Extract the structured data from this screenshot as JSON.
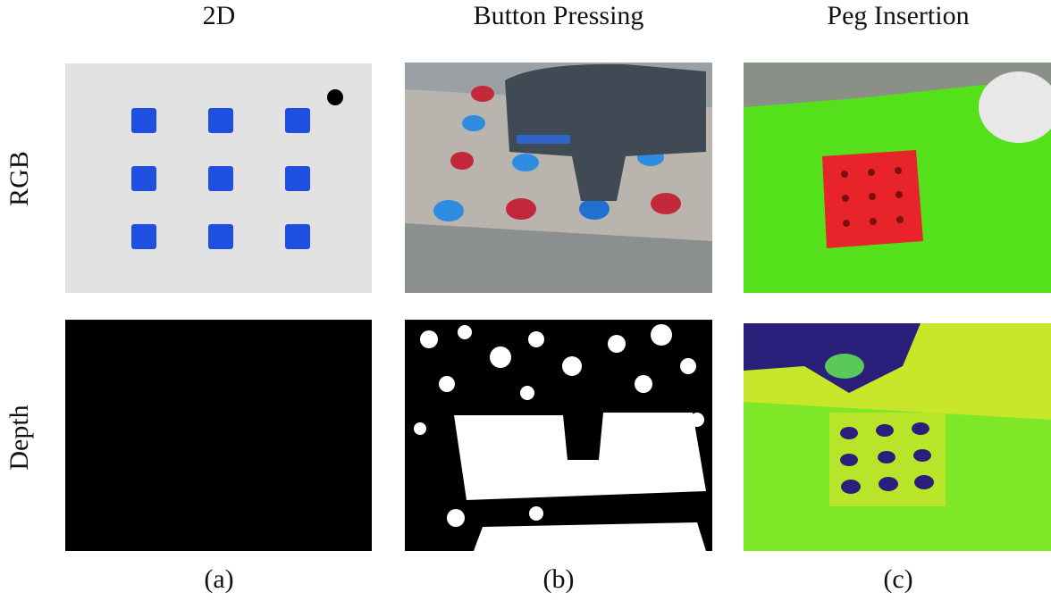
{
  "columns": [
    {
      "title": "2D",
      "caption": "(a)"
    },
    {
      "title": "Button Pressing",
      "caption": "(b)"
    },
    {
      "title": "Peg Insertion",
      "caption": "(c)"
    }
  ],
  "rows": [
    {
      "label": "RGB"
    },
    {
      "label": "Depth"
    }
  ]
}
